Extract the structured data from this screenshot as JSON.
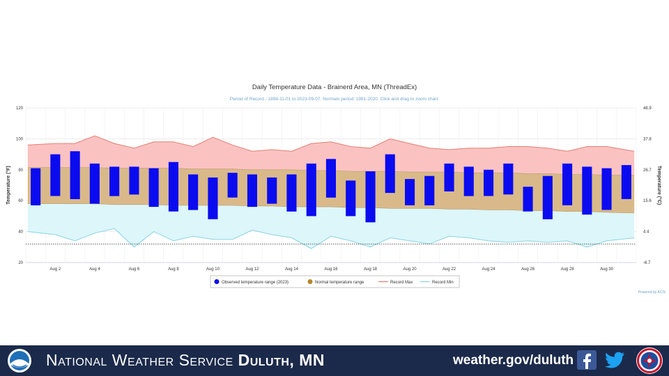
{
  "chart_data": {
    "type": "floating-bar",
    "title": "Daily Temperature Data - Brainerd Area, MN (ThreadEx)",
    "subtitle": "Period of Record - 1898-11-01 to 2023-09-07. Normals period: 1991-2020. Click and drag to zoom chart.",
    "ylabel_left": "Temperature (°F)",
    "ylabel_right": "Temperature (°C)",
    "ylim": [
      20,
      120
    ],
    "yticks_left": [
      "20",
      "40",
      "60",
      "80",
      "100",
      "120"
    ],
    "yticks_right": [
      "-6.7",
      "4.4",
      "15.6",
      "26.7",
      "37.8",
      "48.9"
    ],
    "x_ticks": [
      "Aug 2",
      "Aug 4",
      "Aug 6",
      "Aug 8",
      "Aug 10",
      "Aug 12",
      "Aug 14",
      "Aug 16",
      "Aug 18",
      "Aug 20",
      "Aug 22",
      "Aug 24",
      "Aug 26",
      "Aug 28",
      "Aug 30"
    ],
    "days": [
      1,
      2,
      3,
      4,
      5,
      6,
      7,
      8,
      9,
      10,
      11,
      12,
      13,
      14,
      15,
      16,
      17,
      18,
      19,
      20,
      21,
      22,
      23,
      24,
      25,
      26,
      27,
      28,
      29,
      30,
      31
    ],
    "observed_low": [
      57,
      63,
      61,
      58,
      63,
      64,
      56,
      53,
      54,
      48,
      62,
      56,
      58,
      53,
      50,
      62,
      50,
      46,
      65,
      57,
      57,
      66,
      63,
      63,
      64,
      53,
      48,
      57,
      51,
      54,
      61
    ],
    "observed_high": [
      81,
      90,
      92,
      84,
      82,
      82,
      81,
      85,
      77,
      75,
      78,
      77,
      75,
      77,
      84,
      87,
      73,
      79,
      90,
      74,
      76,
      84,
      82,
      80,
      84,
      69,
      76,
      84,
      82,
      81,
      83
    ],
    "normal_low": [
      58,
      58,
      58,
      58,
      57.5,
      57.5,
      57.5,
      57,
      57,
      57,
      57,
      56.5,
      56.5,
      56,
      56,
      56,
      55.5,
      55.5,
      55,
      55,
      55,
      54.5,
      54.5,
      54,
      54,
      53.5,
      53.5,
      53,
      53,
      52.5,
      52
    ],
    "normal_high": [
      81.5,
      81.5,
      81.5,
      81.5,
      81,
      81,
      81,
      81,
      80.5,
      80.5,
      80.5,
      80,
      80,
      80,
      79.5,
      79.5,
      79,
      79,
      79,
      78.5,
      78.5,
      78.5,
      78,
      78,
      78,
      77.5,
      77.5,
      77,
      77,
      76.5,
      76.5
    ],
    "record_max": [
      96,
      97,
      97,
      102,
      97,
      94,
      98,
      98,
      95,
      101,
      96,
      92,
      93,
      92,
      97,
      98,
      95,
      94,
      100,
      97,
      94,
      93,
      94,
      94,
      95,
      95,
      94,
      92,
      95,
      95,
      92
    ],
    "record_min": [
      40,
      38,
      34,
      39,
      42,
      30,
      40,
      34,
      37,
      35,
      35,
      41,
      38,
      36,
      29,
      37,
      34,
      30,
      36,
      34,
      32,
      37,
      36,
      34,
      33,
      34,
      33,
      34,
      30,
      34,
      36
    ],
    "reference_line": 32,
    "legend": {
      "observed": "Observed temperature range (2023)",
      "normal": "Normal temperature range",
      "record_max": "Record Max",
      "record_min": "Record Min"
    },
    "credit": "Powered by ACIS",
    "legend_position": "bottom-center",
    "grid": true,
    "colors": {
      "observed": "#0b0bf0",
      "normal_fill": "#d9b98a",
      "record_max_fill": "#fbc2c2",
      "record_max_line": "#e08070",
      "record_min_fill": "#dcf6fa",
      "record_min_line": "#8ad3e3",
      "reference_line": "#333333",
      "title_text": "#333333",
      "subtitle_text": "#6fa4c9",
      "axis_text": "#333333"
    }
  },
  "footer": {
    "org_prefix": "National Weather Service",
    "org_office": "Duluth, MN",
    "website": "weather.gov/duluth",
    "colors": {
      "background": "#1b2a4a",
      "text": "#ffffff"
    }
  }
}
